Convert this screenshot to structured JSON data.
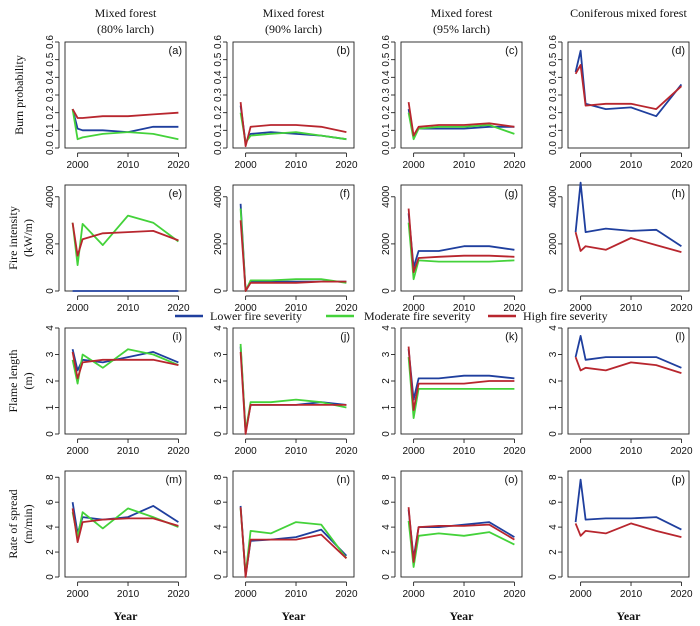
{
  "column_titles": [
    {
      "line1": "Mixed forest",
      "line2": "(80% larch)"
    },
    {
      "line1": "Mixed forest",
      "line2": "(90% larch)"
    },
    {
      "line1": "Mixed forest",
      "line2": "(95% larch)"
    },
    {
      "line1": "Coniferous mixed forest",
      "line2": ""
    }
  ],
  "row_labels": [
    {
      "line1": "Burn probability",
      "line2": ""
    },
    {
      "line1": "Fire intensity",
      "line2": "(kW/m)"
    },
    {
      "line1": "Flame length",
      "line2": "(m)"
    },
    {
      "line1": "Rate of spread",
      "line2": "(m/min)"
    }
  ],
  "x_label": "Year",
  "legend": [
    {
      "name": "Lower fire severity",
      "color": "#1f3f9e"
    },
    {
      "name": "Moderate fire severity",
      "color": "#44d23a"
    },
    {
      "name": "High fire severity",
      "color": "#b8262e"
    }
  ],
  "chart_data": {
    "type": "line",
    "x": [
      1999,
      2000,
      2001,
      2005,
      2010,
      2015,
      2020
    ],
    "x_ticks": [
      "2000",
      "2010",
      "2020"
    ],
    "rows": [
      {
        "ylim": [
          0,
          0.6
        ],
        "yticks": [
          "0.0",
          "0.1",
          "0.2",
          "0.3",
          "0.4",
          "0.5",
          "0.6"
        ]
      },
      {
        "ylim": [
          0,
          4500
        ],
        "yticks": [
          "0",
          "2000",
          "4000"
        ]
      },
      {
        "ylim": [
          0,
          4
        ],
        "yticks": [
          "0",
          "1",
          "2",
          "3",
          "4"
        ]
      },
      {
        "ylim": [
          0,
          8.5
        ],
        "yticks": [
          "0",
          "2",
          "4",
          "6",
          "8"
        ]
      }
    ],
    "panels": [
      {
        "label": "(a)",
        "row": 0,
        "col": 0,
        "series": [
          {
            "name": "Lower fire severity",
            "values": [
              0.22,
              0.11,
              0.1,
              0.1,
              0.09,
              0.12,
              0.12
            ]
          },
          {
            "name": "Moderate fire severity",
            "values": [
              0.22,
              0.05,
              0.06,
              0.08,
              0.09,
              0.08,
              0.05
            ]
          },
          {
            "name": "High fire severity",
            "values": [
              0.22,
              0.17,
              0.17,
              0.18,
              0.18,
              0.19,
              0.2
            ]
          }
        ]
      },
      {
        "label": "(b)",
        "row": 0,
        "col": 1,
        "series": [
          {
            "name": "Lower fire severity",
            "values": [
              0.24,
              0.03,
              0.08,
              0.09,
              0.08,
              0.07,
              0.05
            ]
          },
          {
            "name": "Moderate fire severity",
            "values": [
              0.2,
              0.03,
              0.07,
              0.08,
              0.09,
              0.07,
              0.05
            ]
          },
          {
            "name": "High fire severity",
            "values": [
              0.26,
              0.01,
              0.12,
              0.13,
              0.13,
              0.12,
              0.09
            ]
          }
        ]
      },
      {
        "label": "(c)",
        "row": 0,
        "col": 2,
        "series": [
          {
            "name": "Lower fire severity",
            "values": [
              0.22,
              0.06,
              0.11,
              0.11,
              0.11,
              0.12,
              0.12
            ]
          },
          {
            "name": "Moderate fire severity",
            "values": [
              0.2,
              0.05,
              0.11,
              0.12,
              0.12,
              0.13,
              0.08
            ]
          },
          {
            "name": "High fire severity",
            "values": [
              0.26,
              0.07,
              0.12,
              0.13,
              0.13,
              0.14,
              0.12
            ]
          }
        ]
      },
      {
        "label": "(d)",
        "row": 0,
        "col": 3,
        "series": [
          {
            "name": "Lower fire severity",
            "values": [
              0.43,
              0.55,
              0.25,
              0.22,
              0.23,
              0.18,
              0.36
            ]
          },
          {
            "name": "High fire severity",
            "values": [
              0.42,
              0.47,
              0.24,
              0.25,
              0.25,
              0.22,
              0.35
            ]
          }
        ]
      },
      {
        "label": "(e)",
        "row": 1,
        "col": 0,
        "series": [
          {
            "name": "Lower fire severity",
            "values": [
              0,
              0,
              0,
              0,
              0,
              0,
              0
            ]
          },
          {
            "name": "Moderate fire severity",
            "values": [
              2900,
              1100,
              2850,
              1950,
              3200,
              2900,
              2100
            ]
          },
          {
            "name": "High fire severity",
            "values": [
              2900,
              1500,
              2200,
              2450,
              2500,
              2550,
              2150
            ]
          }
        ]
      },
      {
        "label": "(f)",
        "row": 1,
        "col": 1,
        "series": [
          {
            "name": "Lower fire severity",
            "values": [
              3700,
              0,
              400,
              400,
              400,
              400,
              400
            ]
          },
          {
            "name": "Moderate fire severity",
            "values": [
              3500,
              0,
              450,
              450,
              500,
              500,
              350
            ]
          },
          {
            "name": "High fire severity",
            "values": [
              3000,
              0,
              350,
              350,
              350,
              400,
              400
            ]
          }
        ]
      },
      {
        "label": "(g)",
        "row": 1,
        "col": 2,
        "series": [
          {
            "name": "Lower fire severity",
            "values": [
              3300,
              1000,
              1700,
              1700,
              1900,
              1900,
              1750
            ]
          },
          {
            "name": "Moderate fire severity",
            "values": [
              2900,
              500,
              1300,
              1250,
              1250,
              1250,
              1300
            ]
          },
          {
            "name": "High fire severity",
            "values": [
              3500,
              800,
              1400,
              1450,
              1500,
              1500,
              1450
            ]
          }
        ]
      },
      {
        "label": "(h)",
        "row": 1,
        "col": 3,
        "series": [
          {
            "name": "Lower fire severity",
            "values": [
              2500,
              4600,
              2500,
              2650,
              2550,
              2600,
              1900
            ]
          },
          {
            "name": "High fire severity",
            "values": [
              2500,
              1700,
              1900,
              1750,
              2250,
              1950,
              1650
            ]
          }
        ]
      },
      {
        "label": "(i)",
        "row": 2,
        "col": 0,
        "series": [
          {
            "name": "Lower fire severity",
            "values": [
              3.2,
              2.4,
              2.8,
              2.7,
              2.9,
              3.1,
              2.7
            ]
          },
          {
            "name": "Moderate fire severity",
            "values": [
              2.8,
              1.9,
              3.0,
              2.5,
              3.2,
              3.0,
              2.6
            ]
          },
          {
            "name": "High fire severity",
            "values": [
              3.1,
              2.1,
              2.7,
              2.8,
              2.8,
              2.8,
              2.6
            ]
          }
        ]
      },
      {
        "label": "(j)",
        "row": 2,
        "col": 1,
        "series": [
          {
            "name": "Lower fire severity",
            "values": [
              3.3,
              0.1,
              1.1,
              1.1,
              1.1,
              1.2,
              1.1
            ]
          },
          {
            "name": "Moderate fire severity",
            "values": [
              3.4,
              0.1,
              1.2,
              1.2,
              1.3,
              1.2,
              1.0
            ]
          },
          {
            "name": "High fire severity",
            "values": [
              3.1,
              0.0,
              1.1,
              1.1,
              1.1,
              1.1,
              1.1
            ]
          }
        ]
      },
      {
        "label": "(k)",
        "row": 2,
        "col": 2,
        "series": [
          {
            "name": "Lower fire severity",
            "values": [
              3.2,
              1.3,
              2.1,
              2.1,
              2.2,
              2.2,
              2.1
            ]
          },
          {
            "name": "Moderate fire severity",
            "values": [
              2.9,
              0.6,
              1.7,
              1.7,
              1.7,
              1.7,
              1.7
            ]
          },
          {
            "name": "High fire severity",
            "values": [
              3.3,
              0.9,
              1.9,
              1.9,
              1.9,
              2.0,
              2.0
            ]
          }
        ]
      },
      {
        "label": "(l)",
        "row": 2,
        "col": 3,
        "series": [
          {
            "name": "Lower fire severity",
            "values": [
              2.9,
              3.7,
              2.8,
              2.9,
              2.9,
              2.9,
              2.5
            ]
          },
          {
            "name": "High fire severity",
            "values": [
              2.9,
              2.4,
              2.5,
              2.4,
              2.7,
              2.6,
              2.3
            ]
          }
        ]
      },
      {
        "label": "(m)",
        "row": 3,
        "col": 0,
        "series": [
          {
            "name": "Lower fire severity",
            "values": [
              6.0,
              3.5,
              4.8,
              4.6,
              4.8,
              5.7,
              4.4
            ]
          },
          {
            "name": "Moderate fire severity",
            "values": [
              5.2,
              3.2,
              5.2,
              3.9,
              5.5,
              4.8,
              4.0
            ]
          },
          {
            "name": "High fire severity",
            "values": [
              5.5,
              2.8,
              4.4,
              4.6,
              4.7,
              4.7,
              4.1
            ]
          }
        ]
      },
      {
        "label": "(n)",
        "row": 3,
        "col": 1,
        "series": [
          {
            "name": "Lower fire severity",
            "values": [
              5.7,
              0.1,
              2.9,
              3.0,
              3.2,
              3.8,
              1.7
            ]
          },
          {
            "name": "Moderate fire severity",
            "values": [
              5.5,
              0.2,
              3.7,
              3.5,
              4.4,
              4.2,
              1.5
            ]
          },
          {
            "name": "High fire severity",
            "values": [
              5.6,
              0.0,
              3.0,
              3.0,
              3.0,
              3.4,
              1.5
            ]
          }
        ]
      },
      {
        "label": "(o)",
        "row": 3,
        "col": 2,
        "series": [
          {
            "name": "Lower fire severity",
            "values": [
              5.4,
              1.5,
              4.0,
              4.0,
              4.2,
              4.4,
              3.2
            ]
          },
          {
            "name": "Moderate fire severity",
            "values": [
              4.5,
              0.8,
              3.3,
              3.5,
              3.3,
              3.6,
              2.6
            ]
          },
          {
            "name": "High fire severity",
            "values": [
              5.6,
              1.2,
              4.0,
              4.1,
              4.1,
              4.2,
              3.0
            ]
          }
        ]
      },
      {
        "label": "(p)",
        "row": 3,
        "col": 3,
        "series": [
          {
            "name": "Lower fire severity",
            "values": [
              4.4,
              7.8,
              4.6,
              4.7,
              4.7,
              4.8,
              3.8
            ]
          },
          {
            "name": "High fire severity",
            "values": [
              4.3,
              3.3,
              3.7,
              3.5,
              4.3,
              3.7,
              3.2
            ]
          }
        ]
      }
    ]
  }
}
